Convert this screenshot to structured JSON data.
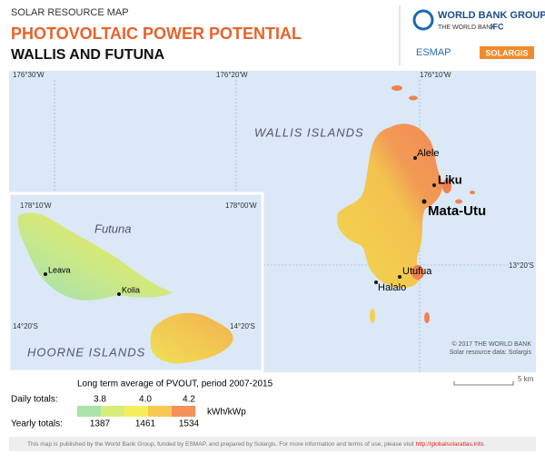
{
  "header": {
    "kicker": "SOLAR RESOURCE MAP",
    "title": "PHOTOVOLTAIC POWER POTENTIAL",
    "subtitle": "WALLIS AND FUTUNA"
  },
  "logos": {
    "wbg": "WORLD BANK GROUP",
    "wb": "THE WORLD BANK",
    "ifc": "IFC",
    "esmap": "ESMAP",
    "solargis": "SOLARGIS"
  },
  "map": {
    "graticule": {
      "lon": [
        "176°30'W",
        "176°20'W",
        "176°10'W"
      ],
      "lat": "13°20'S"
    },
    "region": "WALLIS ISLANDS",
    "places": [
      "Alele",
      "Liku",
      "Mata-Utu",
      "Utufua",
      "Halalo"
    ],
    "inset": {
      "lon": [
        "178°10'W",
        "178°00'W"
      ],
      "lat": [
        "14°20'S",
        "14°20'S"
      ],
      "island": "Futuna",
      "places": [
        "Leava",
        "Kolia"
      ],
      "region": "HOORNE ISLANDS"
    },
    "credits": [
      "© 2017 THE WORLD BANK",
      "Solar resource data: Solargis"
    ],
    "scale": "5 km"
  },
  "legend": {
    "title": "Long term average of PVOUT, period 2007-2015",
    "daily_label": "Daily totals:",
    "daily": [
      "3.8",
      "4.0",
      "4.2"
    ],
    "yearly_label": "Yearly totals:",
    "yearly": [
      "1387",
      "1461",
      "1534"
    ],
    "unit": "kWh/kWp"
  },
  "footer": {
    "text": "This map is published by the World Bank Group, funded by ESMAP, and prepared by Solargis. For more information and terms of use, please visit ",
    "link": "http://globalsolaratlas.info",
    "end": "."
  }
}
